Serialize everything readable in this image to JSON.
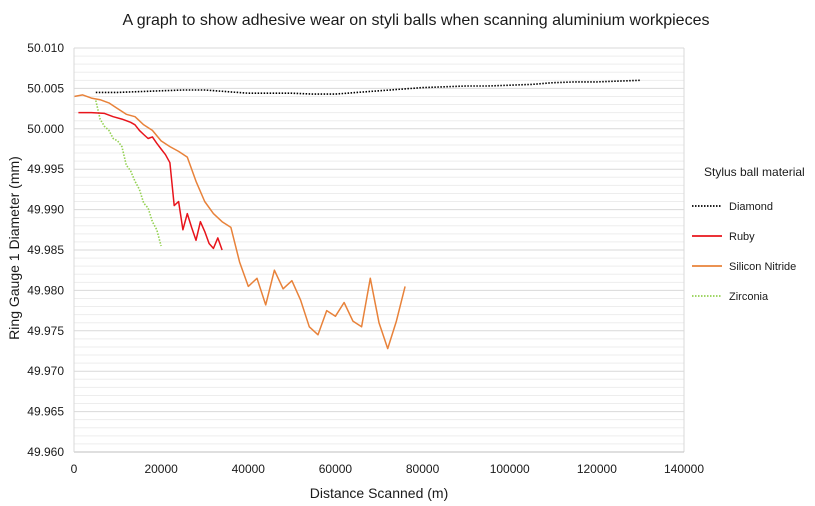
{
  "chart_data": {
    "type": "line",
    "title": "A graph to show adhesive wear on styli balls when scanning aluminium workpieces",
    "xlabel": "Distance Scanned (m)",
    "ylabel": "Ring Gauge 1 Diameter (mm)",
    "xlim": [
      0,
      140000
    ],
    "ylim": [
      49.96,
      50.01
    ],
    "xticks": [
      0,
      20000,
      40000,
      60000,
      80000,
      100000,
      120000,
      140000
    ],
    "xtick_labels": [
      "0",
      "20000",
      "40000",
      "60000",
      "80000",
      "100000",
      "120000",
      "140000"
    ],
    "yticks": [
      49.96,
      49.965,
      49.97,
      49.975,
      49.98,
      49.985,
      49.99,
      49.995,
      50.0,
      50.005,
      50.01
    ],
    "ytick_labels": [
      "49.960",
      "49.965",
      "49.970",
      "49.975",
      "49.980",
      "49.985",
      "49.990",
      "49.995",
      "50.000",
      "50.005",
      "50.010"
    ],
    "grid": "horizontal",
    "legend": {
      "title": "Stylus ball material",
      "position": "right"
    },
    "series": [
      {
        "name": "Diamond",
        "color": "#000000",
        "style": "dotted",
        "x": [
          5000,
          10000,
          15000,
          20000,
          25000,
          30000,
          35000,
          40000,
          45000,
          50000,
          55000,
          60000,
          65000,
          70000,
          75000,
          80000,
          85000,
          90000,
          95000,
          100000,
          105000,
          110000,
          115000,
          120000,
          125000,
          130000
        ],
        "y": [
          50.0045,
          50.0045,
          50.0046,
          50.0047,
          50.0048,
          50.0048,
          50.0046,
          50.0044,
          50.0044,
          50.0044,
          50.0043,
          50.0043,
          50.0045,
          50.0047,
          50.0049,
          50.0051,
          50.0052,
          50.0053,
          50.0053,
          50.0054,
          50.0055,
          50.0057,
          50.0058,
          50.0058,
          50.0059,
          50.006
        ]
      },
      {
        "name": "Ruby",
        "color": "#e8141b",
        "style": "solid",
        "x": [
          1000,
          4000,
          7000,
          9000,
          11000,
          13000,
          14000,
          15000,
          16000,
          17000,
          18000,
          19000,
          20000,
          21000,
          22000,
          23000,
          24000,
          25000,
          26000,
          27000,
          28000,
          29000,
          30000,
          31000,
          32000,
          33000,
          34000
        ],
        "y": [
          50.002,
          50.002,
          50.0019,
          50.0015,
          50.0012,
          50.0008,
          50.0005,
          49.9998,
          49.9993,
          49.9988,
          49.999,
          49.9982,
          49.9975,
          49.9968,
          49.9958,
          49.9905,
          49.991,
          49.9875,
          49.9895,
          49.9878,
          49.9862,
          49.9885,
          49.9873,
          49.9858,
          49.9852,
          49.9865,
          49.985
        ]
      },
      {
        "name": "Silicon Nitride",
        "color": "#e8823a",
        "style": "solid",
        "x": [
          0,
          2000,
          4000,
          6000,
          8000,
          10000,
          12000,
          14000,
          16000,
          18000,
          20000,
          22000,
          24000,
          26000,
          28000,
          30000,
          32000,
          34000,
          36000,
          38000,
          40000,
          42000,
          44000,
          46000,
          48000,
          50000,
          52000,
          54000,
          56000,
          58000,
          60000,
          62000,
          64000,
          66000,
          68000,
          70000,
          72000,
          74000,
          76000
        ],
        "y": [
          50.004,
          50.0042,
          50.0038,
          50.0036,
          50.0032,
          50.0025,
          50.0018,
          50.0015,
          50.0005,
          49.9998,
          49.9985,
          49.9978,
          49.9972,
          49.9965,
          49.9935,
          49.991,
          49.9895,
          49.9885,
          49.9878,
          49.9835,
          49.9805,
          49.9815,
          49.9782,
          49.9825,
          49.9802,
          49.9812,
          49.9788,
          49.9755,
          49.9745,
          49.9775,
          49.9768,
          49.9785,
          49.9762,
          49.9755,
          49.9815,
          49.976,
          49.9728,
          49.9762,
          49.9805
        ]
      },
      {
        "name": "Zirconia",
        "color": "#92d050",
        "style": "dotted",
        "x": [
          5000,
          6000,
          7000,
          8000,
          9000,
          10000,
          11000,
          12000,
          13000,
          14000,
          15000,
          16000,
          17000,
          18000,
          19000,
          20000
        ],
        "y": [
          50.0035,
          50.0012,
          50.0003,
          49.9998,
          49.9988,
          49.9985,
          49.9978,
          49.9955,
          49.9948,
          49.9935,
          49.9925,
          49.9908,
          49.9902,
          49.9885,
          49.9875,
          49.9855
        ]
      }
    ]
  }
}
